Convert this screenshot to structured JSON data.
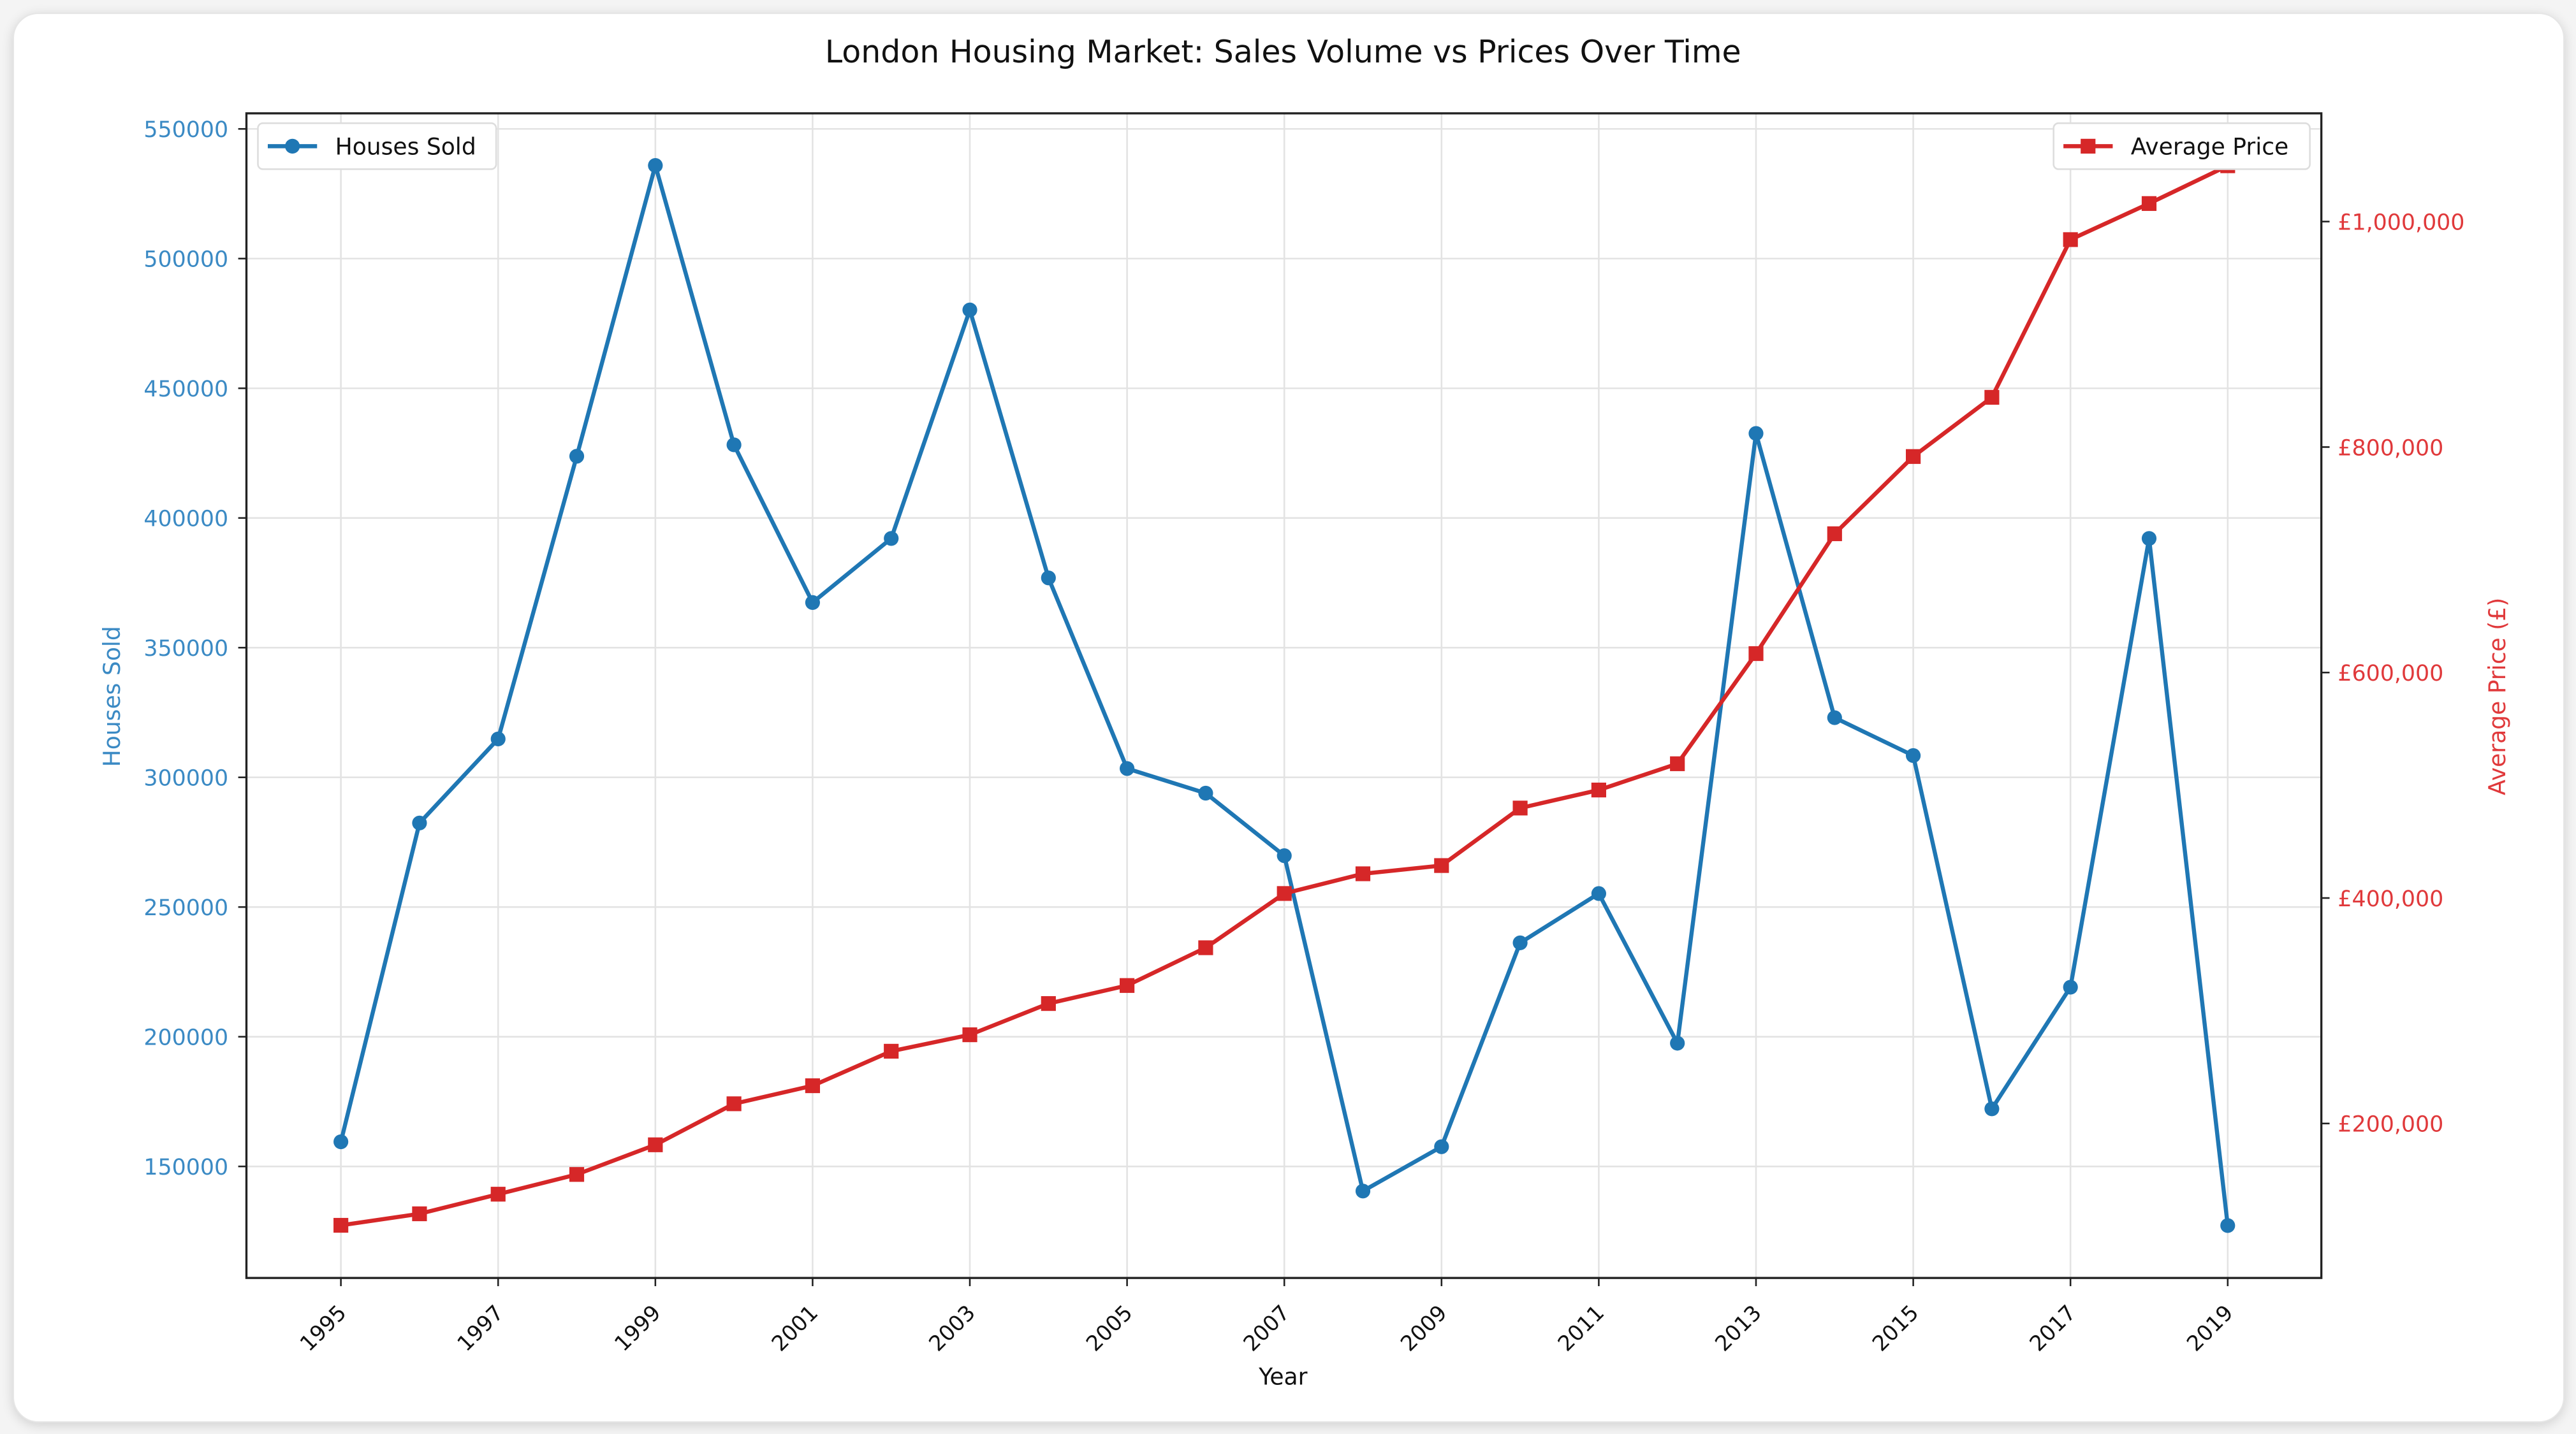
{
  "chart_data": {
    "type": "line",
    "title": "London Housing Market: Sales Volume vs Prices Over Time",
    "xlabel": "Year",
    "ylabel_left": "Houses Sold",
    "ylabel_right": "Average Price (£)",
    "x": [
      1995,
      1996,
      1997,
      1998,
      1999,
      2000,
      2001,
      2002,
      2003,
      2004,
      2005,
      2006,
      2007,
      2008,
      2009,
      2010,
      2011,
      2012,
      2013,
      2014,
      2015,
      2016,
      2017,
      2018,
      2019
    ],
    "x_tick_labels": [
      "1995",
      "1997",
      "1999",
      "2001",
      "2003",
      "2005",
      "2007",
      "2009",
      "2011",
      "2013",
      "2015",
      "2017",
      "2019"
    ],
    "ylim_left": [
      107000,
      556000
    ],
    "ylim_right": [
      63000,
      1096000
    ],
    "y_left_ticks": [
      150000,
      200000,
      250000,
      300000,
      350000,
      400000,
      450000,
      500000,
      550000
    ],
    "y_left_tick_labels": [
      "150000",
      "200000",
      "250000",
      "300000",
      "350000",
      "400000",
      "450000",
      "500000",
      "550000"
    ],
    "y_right_ticks": [
      200000,
      400000,
      600000,
      800000,
      1000000
    ],
    "y_right_tick_labels": [
      "£200,000",
      "£400,000",
      "£600,000",
      "£800,000",
      "£1,000,000"
    ],
    "grid": true,
    "series": [
      {
        "name": "Houses Sold",
        "axis": "left",
        "color": "#1f77b4",
        "marker": "circle",
        "legend": "top-left",
        "values": [
          159500,
          282400,
          314800,
          423800,
          535900,
          428200,
          367400,
          392100,
          480200,
          376900,
          303400,
          293900,
          269800,
          140500,
          157600,
          236200,
          255200,
          197500,
          432600,
          323000,
          308400,
          172200,
          219100,
          392100,
          127200
        ]
      },
      {
        "name": "Average Price",
        "axis": "right",
        "color": "#d62728",
        "marker": "square",
        "legend": "top-right",
        "values": [
          109700,
          119900,
          137300,
          154800,
          181100,
          217500,
          233500,
          264100,
          278700,
          306400,
          322400,
          355900,
          404000,
          421500,
          428800,
          479800,
          495800,
          519100,
          616800,
          723100,
          791600,
          844100,
          984000,
          1016000,
          1049500
        ]
      }
    ]
  }
}
